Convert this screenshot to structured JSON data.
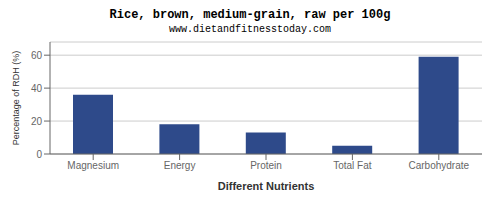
{
  "chart_data": {
    "type": "bar",
    "title": "Rice, brown, medium-grain, raw per 100g",
    "subtitle": "www.dietandfitnesstoday.com",
    "xlabel": "Different Nutrients",
    "ylabel": "Percentage of RDH (%)",
    "categories": [
      "Magnesium",
      "Energy",
      "Protein",
      "Total Fat",
      "Carbohydrate"
    ],
    "values": [
      36,
      18,
      13,
      5,
      59
    ],
    "color": "#2e4a8a",
    "ylim": [
      0,
      68
    ],
    "yticks": [
      0,
      20,
      40,
      60
    ],
    "grid": true
  }
}
